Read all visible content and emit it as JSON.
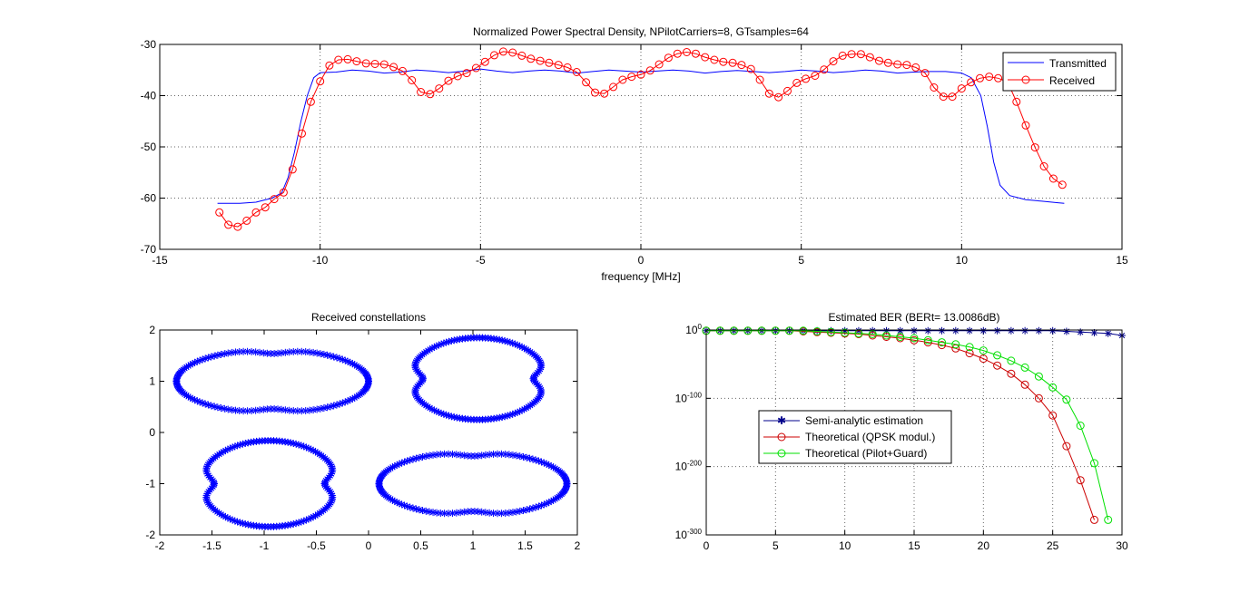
{
  "colors": {
    "transmitted": "#0000ff",
    "received": "#ff0000",
    "semi": "#00008b",
    "qpsk": "#cc0000",
    "pilot": "#00e000",
    "constellation": "#0000ff",
    "grid": "#666666"
  },
  "chart_data": [
    {
      "type": "line",
      "title": "Normalized Power Spectral Density, NPilotCarriers=8, GTsamples=64",
      "xlabel": "frequency [MHz]",
      "ylabel": "",
      "xlim": [
        -15,
        15
      ],
      "ylim": [
        -70,
        -30
      ],
      "xticks": [
        -15,
        -10,
        -5,
        0,
        5,
        10,
        15
      ],
      "yticks": [
        -70,
        -60,
        -50,
        -40,
        -30
      ],
      "grid": true,
      "legend": "top-right",
      "series": [
        {
          "name": "Transmitted",
          "marker": "none",
          "x": [
            -13.2,
            -12.5,
            -12,
            -11.5,
            -11.2,
            -11,
            -10.8,
            -10.6,
            -10.4,
            -10.2,
            -10,
            -9.5,
            -9,
            -8.5,
            -8,
            -7.5,
            -7,
            -6.5,
            -6,
            -5.5,
            -5,
            -4.5,
            -4,
            -3.5,
            -3,
            -2.5,
            -2,
            -1.5,
            -1,
            -0.5,
            0,
            0.5,
            1,
            1.5,
            2,
            2.5,
            3,
            3.5,
            4,
            4.5,
            5,
            5.5,
            6,
            6.5,
            7,
            7.5,
            8,
            8.5,
            9,
            9.5,
            10,
            10.3,
            10.6,
            10.8,
            11,
            11.2,
            11.5,
            12,
            12.5,
            13,
            13.2
          ],
          "y": [
            -61,
            -61,
            -60.8,
            -60,
            -59,
            -56,
            -51,
            -45,
            -40,
            -36.5,
            -35.5,
            -35.4,
            -35,
            -35.2,
            -35.6,
            -35.4,
            -35,
            -35.2,
            -35.5,
            -35.2,
            -34.8,
            -35.2,
            -35.5,
            -35.2,
            -35,
            -35.2,
            -35.6,
            -35.3,
            -35,
            -35.2,
            -35.4,
            -35.2,
            -35,
            -35.2,
            -35.6,
            -35.3,
            -35.1,
            -35.3,
            -35.5,
            -35.3,
            -35,
            -35.2,
            -35.5,
            -35.3,
            -35,
            -35.2,
            -35.6,
            -35.4,
            -35.3,
            -35.3,
            -35.6,
            -36.5,
            -40,
            -46,
            -53,
            -57.5,
            -59.5,
            -60.3,
            -60.6,
            -60.9,
            -61
          ]
        },
        {
          "name": "Received",
          "marker": "circle",
          "x": [
            -13.14,
            -12.86,
            -12.57,
            -12.29,
            -12.0,
            -11.71,
            -11.43,
            -11.14,
            -10.86,
            -10.57,
            -10.29,
            -10.0,
            -9.71,
            -9.43,
            -9.14,
            -8.86,
            -8.57,
            -8.29,
            -8.0,
            -7.71,
            -7.43,
            -7.14,
            -6.86,
            -6.57,
            -6.29,
            -6.0,
            -5.71,
            -5.43,
            -5.14,
            -4.86,
            -4.57,
            -4.29,
            -4.0,
            -3.71,
            -3.43,
            -3.14,
            -2.86,
            -2.57,
            -2.29,
            -2.0,
            -1.71,
            -1.43,
            -1.14,
            -0.86,
            -0.57,
            -0.29,
            0.0,
            0.29,
            0.57,
            0.86,
            1.14,
            1.43,
            1.71,
            2.0,
            2.29,
            2.57,
            2.86,
            3.14,
            3.43,
            3.71,
            4.0,
            4.29,
            4.57,
            4.86,
            5.14,
            5.43,
            5.71,
            6.0,
            6.29,
            6.57,
            6.86,
            7.14,
            7.43,
            7.71,
            8.0,
            8.29,
            8.57,
            8.86,
            9.14,
            9.43,
            9.71,
            10.0,
            10.29,
            10.57,
            10.86,
            11.14,
            11.43,
            11.71,
            12.0,
            12.29,
            12.57,
            12.86,
            13.14
          ],
          "y": [
            -62.8,
            -65.2,
            -65.6,
            -64.4,
            -62.8,
            -61.8,
            -60.2,
            -58.9,
            -54.4,
            -47.4,
            -41.2,
            -37.2,
            -34.1,
            -33.0,
            -32.9,
            -33.3,
            -33.7,
            -33.8,
            -33.9,
            -34.4,
            -35.2,
            -37.0,
            -39.3,
            -39.7,
            -38.6,
            -37.1,
            -36.2,
            -35.6,
            -34.6,
            -33.4,
            -32.1,
            -31.4,
            -31.6,
            -32.2,
            -32.8,
            -33.2,
            -33.6,
            -34.0,
            -34.5,
            -35.4,
            -37.4,
            -39.4,
            -39.6,
            -38.3,
            -36.9,
            -36.3,
            -35.9,
            -35.1,
            -33.9,
            -32.6,
            -31.8,
            -31.5,
            -31.8,
            -32.5,
            -33.0,
            -33.4,
            -33.6,
            -34.0,
            -34.8,
            -36.9,
            -39.6,
            -40.3,
            -39.1,
            -37.5,
            -36.7,
            -36.1,
            -34.9,
            -33.3,
            -32.2,
            -31.9,
            -31.9,
            -32.5,
            -33.2,
            -33.6,
            -33.9,
            -34.0,
            -34.5,
            -35.6,
            -38.4,
            -40.2,
            -40.2,
            -38.6,
            -37.4,
            -36.6,
            -36.3,
            -36.6,
            -37.3,
            -41.2,
            -45.8,
            -50.1,
            -53.8,
            -56.2,
            -57.4
          ]
        }
      ]
    },
    {
      "type": "scatter",
      "title": "Received constellations",
      "xlabel": "",
      "ylabel": "",
      "xlim": [
        -2,
        2
      ],
      "ylim": [
        -2,
        2
      ],
      "xticks": [
        -2,
        -1.5,
        -1,
        -0.5,
        0,
        0.5,
        1,
        1.5,
        2
      ],
      "yticks": [
        -2,
        -1,
        0,
        1,
        2
      ],
      "grid": false,
      "marker": "asterisk",
      "series": [
        {
          "cx": -0.92,
          "cy": 1.0,
          "a": 0.92,
          "b": 0.62,
          "dent_dir": "vertical",
          "dent": 0.13,
          "points": 150
        },
        {
          "cx": 1.0,
          "cy": -1.0,
          "a": 0.9,
          "b": 0.62,
          "dent_dir": "vertical",
          "dent": 0.13,
          "points": 150
        },
        {
          "cx": 1.05,
          "cy": 1.05,
          "a": 0.66,
          "b": 0.8,
          "dent_dir": "horizontal",
          "dent": 0.2,
          "points": 150
        },
        {
          "cx": -0.95,
          "cy": -1.0,
          "a": 0.66,
          "b": 0.84,
          "dent_dir": "horizontal",
          "dent": 0.2,
          "points": 150
        }
      ]
    },
    {
      "type": "line",
      "title": "Estimated BER (BERt= 13.0086dB)",
      "xlabel": "",
      "ylabel": "",
      "xlim": [
        0,
        30
      ],
      "ylim": [
        -300,
        0
      ],
      "yscale": "log",
      "xticks": [
        0,
        5,
        10,
        15,
        20,
        25,
        30
      ],
      "yticks": [
        {
          "base": "10",
          "exp": "0",
          "value": 0
        },
        {
          "base": "10",
          "exp": "-100",
          "value": -100
        },
        {
          "base": "10",
          "exp": "-200",
          "value": -200
        },
        {
          "base": "10",
          "exp": "-300",
          "value": -300
        }
      ],
      "grid": true,
      "legend": "center-left",
      "series": [
        {
          "name": "Semi-analytic estimation",
          "marker": "asterisk",
          "x": [
            0,
            1,
            2,
            3,
            4,
            5,
            6,
            7,
            8,
            9,
            10,
            11,
            12,
            13,
            14,
            15,
            16,
            17,
            18,
            19,
            20,
            21,
            22,
            23,
            24,
            25,
            26,
            27,
            28,
            29,
            30
          ],
          "y": [
            -1,
            -1,
            -1,
            -1,
            -1,
            -1,
            -1,
            -1,
            -1,
            -1,
            -1,
            -1,
            -1,
            -1,
            -1,
            -1,
            -1,
            -1,
            -1,
            -1,
            -1,
            -1,
            -1,
            -1,
            -1,
            -1,
            -2,
            -3,
            -4,
            -5,
            -8
          ]
        },
        {
          "name": "Theoretical (QPSK modul.)",
          "marker": "circle",
          "x": [
            0,
            1,
            2,
            3,
            4,
            5,
            6,
            7,
            8,
            9,
            10,
            11,
            12,
            13,
            14,
            15,
            16,
            17,
            18,
            19,
            20,
            21,
            22,
            23,
            24,
            25,
            26,
            27,
            28
          ],
          "y": [
            -1,
            -1,
            -1,
            -1,
            -1,
            -1,
            -1,
            -2,
            -3,
            -4,
            -5,
            -6,
            -8,
            -10,
            -12,
            -15,
            -18,
            -22,
            -27,
            -34,
            -42,
            -52,
            -64,
            -80,
            -100,
            -125,
            -170,
            -220,
            -278
          ]
        },
        {
          "name": "Theoretical (Pilot+Guard)",
          "marker": "circle",
          "x": [
            0,
            1,
            2,
            3,
            4,
            5,
            6,
            7,
            8,
            9,
            10,
            11,
            12,
            13,
            14,
            15,
            16,
            17,
            18,
            19,
            20,
            21,
            22,
            23,
            24,
            25,
            26,
            27,
            28,
            29
          ],
          "y": [
            -1,
            -1,
            -1,
            -1,
            -1,
            -1,
            -1,
            -1,
            -2,
            -3,
            -4,
            -5,
            -6,
            -8,
            -10,
            -12,
            -15,
            -18,
            -21,
            -25,
            -30,
            -37,
            -45,
            -55,
            -68,
            -84,
            -102,
            -140,
            -195,
            -278
          ]
        }
      ]
    }
  ]
}
